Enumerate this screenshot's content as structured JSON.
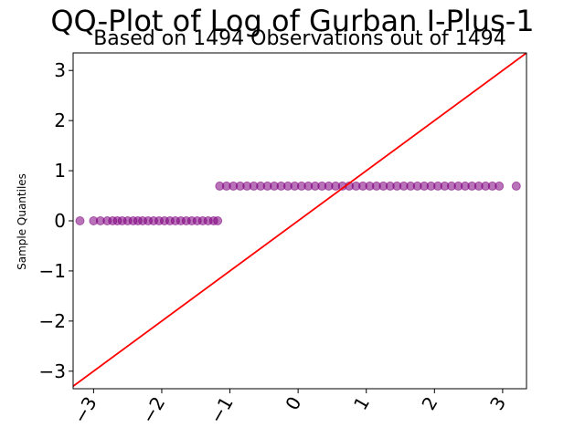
{
  "chart_data": {
    "type": "scatter",
    "title": "QQ-Plot of Log of Gurban I-Plus-1",
    "subtitle": "Based on 1494 Observations out of 1494",
    "xlabel": "",
    "ylabel": "Sample Quantiles",
    "xlim": [
      -3.3,
      3.35
    ],
    "ylim": [
      -3.35,
      3.35
    ],
    "xticks": [
      -3,
      -2,
      -1,
      0,
      1,
      2,
      3
    ],
    "xtick_labels": [
      "−3",
      "−2",
      "−1",
      "0",
      "1",
      "2",
      "3"
    ],
    "yticks": [
      -3,
      -2,
      -1,
      0,
      1,
      2,
      3
    ],
    "ytick_labels": [
      "−3",
      "−2",
      "−1",
      "0",
      "1",
      "2",
      "3"
    ],
    "grid": false,
    "series": [
      {
        "marker_color": "#800080",
        "points": [
          [
            -3.2,
            0.0
          ],
          [
            -3.0,
            0.0
          ],
          [
            -2.9,
            0.0
          ],
          [
            -2.8,
            0.0
          ],
          [
            -2.72,
            0.0
          ],
          [
            -2.65,
            0.0
          ],
          [
            -2.58,
            0.0
          ],
          [
            -2.5,
            0.0
          ],
          [
            -2.42,
            0.0
          ],
          [
            -2.35,
            0.0
          ],
          [
            -2.28,
            0.0
          ],
          [
            -2.2,
            0.0
          ],
          [
            -2.12,
            0.0
          ],
          [
            -2.04,
            0.0
          ],
          [
            -1.96,
            0.0
          ],
          [
            -1.88,
            0.0
          ],
          [
            -1.8,
            0.0
          ],
          [
            -1.72,
            0.0
          ],
          [
            -1.64,
            0.0
          ],
          [
            -1.56,
            0.0
          ],
          [
            -1.48,
            0.0
          ],
          [
            -1.4,
            0.0
          ],
          [
            -1.32,
            0.0
          ],
          [
            -1.24,
            0.0
          ],
          [
            -1.18,
            0.0
          ],
          [
            -1.15,
            0.693
          ],
          [
            -1.05,
            0.693
          ],
          [
            -0.95,
            0.693
          ],
          [
            -0.85,
            0.693
          ],
          [
            -0.75,
            0.693
          ],
          [
            -0.65,
            0.693
          ],
          [
            -0.55,
            0.693
          ],
          [
            -0.45,
            0.693
          ],
          [
            -0.35,
            0.693
          ],
          [
            -0.25,
            0.693
          ],
          [
            -0.15,
            0.693
          ],
          [
            -0.05,
            0.693
          ],
          [
            0.05,
            0.693
          ],
          [
            0.15,
            0.693
          ],
          [
            0.25,
            0.693
          ],
          [
            0.35,
            0.693
          ],
          [
            0.45,
            0.693
          ],
          [
            0.55,
            0.693
          ],
          [
            0.65,
            0.693
          ],
          [
            0.75,
            0.693
          ],
          [
            0.85,
            0.693
          ],
          [
            0.95,
            0.693
          ],
          [
            1.05,
            0.693
          ],
          [
            1.15,
            0.693
          ],
          [
            1.25,
            0.693
          ],
          [
            1.35,
            0.693
          ],
          [
            1.45,
            0.693
          ],
          [
            1.55,
            0.693
          ],
          [
            1.65,
            0.693
          ],
          [
            1.75,
            0.693
          ],
          [
            1.85,
            0.693
          ],
          [
            1.95,
            0.693
          ],
          [
            2.05,
            0.693
          ],
          [
            2.15,
            0.693
          ],
          [
            2.25,
            0.693
          ],
          [
            2.35,
            0.693
          ],
          [
            2.45,
            0.693
          ],
          [
            2.55,
            0.693
          ],
          [
            2.65,
            0.693
          ],
          [
            2.75,
            0.693
          ],
          [
            2.85,
            0.693
          ],
          [
            2.95,
            0.693
          ],
          [
            3.2,
            0.693
          ]
        ]
      }
    ],
    "reference_line": {
      "slope": 1,
      "intercept": 0,
      "color": "#ff0000"
    }
  }
}
